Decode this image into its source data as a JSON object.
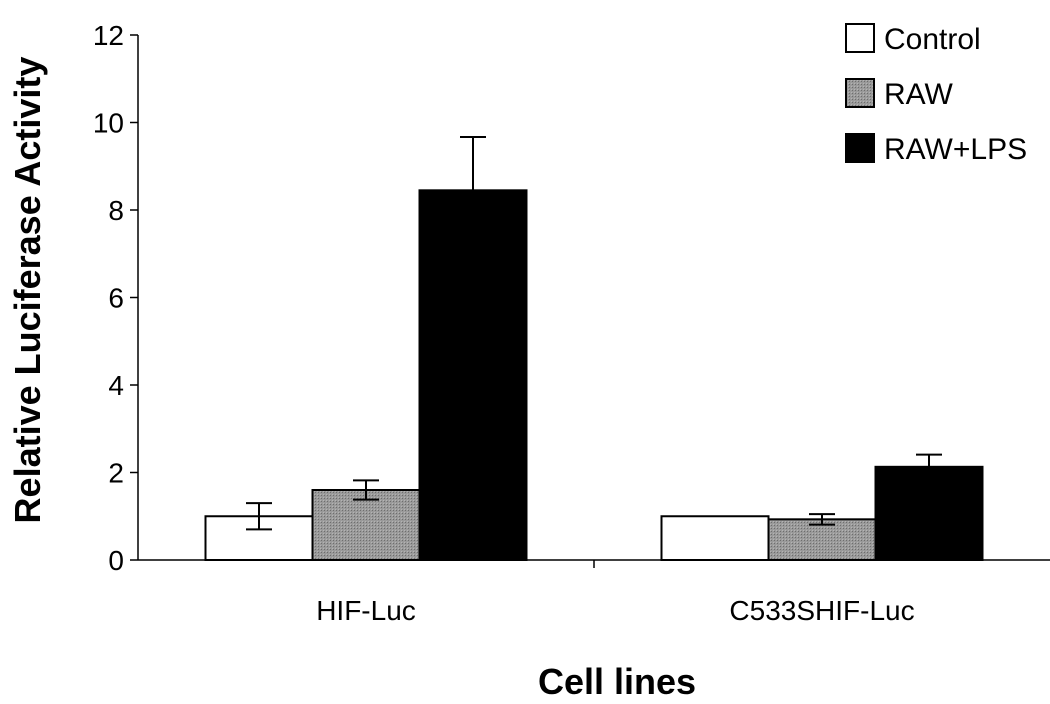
{
  "chart_data": {
    "type": "bar",
    "title": "",
    "xlabel": "Cell lines",
    "ylabel": "Relative Luciferase Activity",
    "ylim": [
      0,
      12
    ],
    "yticks": [
      0,
      2,
      4,
      6,
      8,
      10,
      12
    ],
    "categories": [
      "HIF-Luc",
      "C533SHIF-Luc"
    ],
    "series": [
      {
        "name": "Control",
        "values": [
          1.0,
          1.0
        ],
        "errors": [
          0.3,
          0.0
        ],
        "color": "#ffffff"
      },
      {
        "name": "RAW",
        "values": [
          1.6,
          0.93
        ],
        "errors": [
          0.22,
          0.12
        ],
        "color": "#8c8c8c"
      },
      {
        "name": "RAW+LPS",
        "values": [
          8.45,
          2.13
        ],
        "errors": [
          1.22,
          0.28
        ],
        "color": "#000000"
      }
    ],
    "legend_position": "top-right",
    "grid": false
  }
}
